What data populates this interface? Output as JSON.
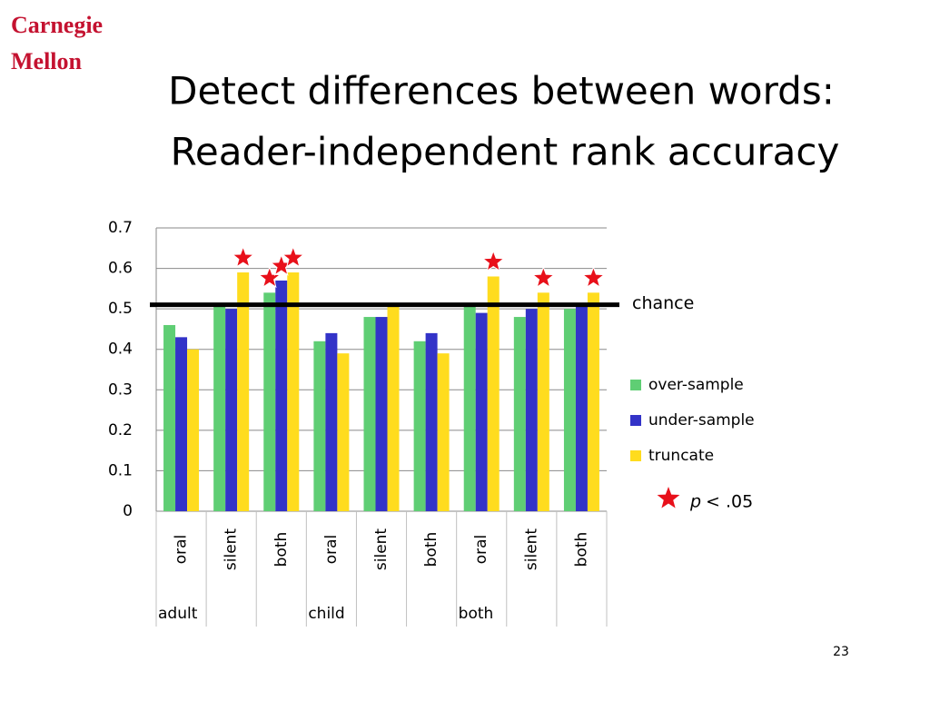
{
  "logo": [
    "Carnegie",
    "Mellon"
  ],
  "page_number": "23",
  "chart_data": {
    "type": "bar",
    "title": [
      "Detect differences between words:",
      "Reader-independent rank accuracy"
    ],
    "categories": [
      "oral",
      "silent",
      "both",
      "oral",
      "silent",
      "both",
      "oral",
      "silent",
      "both"
    ],
    "groups": [
      {
        "label": "adult",
        "start": 0
      },
      {
        "label": "child",
        "start": 3
      },
      {
        "label": "both",
        "start": 6
      }
    ],
    "series": [
      {
        "name": "over-sample",
        "color": "#5fce74",
        "values": [
          0.46,
          0.51,
          0.54,
          0.42,
          0.48,
          0.42,
          0.51,
          0.48,
          0.5
        ],
        "significant": [
          false,
          false,
          true,
          false,
          false,
          false,
          false,
          false,
          false
        ]
      },
      {
        "name": "under-sample",
        "color": "#3333c8",
        "values": [
          0.43,
          0.5,
          0.57,
          0.44,
          0.48,
          0.44,
          0.49,
          0.5,
          0.51
        ],
        "significant": [
          false,
          false,
          true,
          false,
          false,
          false,
          false,
          false,
          false
        ]
      },
      {
        "name": "truncate",
        "color": "#ffdc1e",
        "values": [
          0.4,
          0.59,
          0.59,
          0.39,
          0.51,
          0.39,
          0.58,
          0.54,
          0.54
        ],
        "significant": [
          false,
          true,
          true,
          false,
          false,
          false,
          true,
          true,
          true
        ]
      }
    ],
    "reference_line": {
      "value": 0.51,
      "label": "chance"
    },
    "significance_note": [
      "p",
      "< .05"
    ],
    "star_color": "#e8101a",
    "ylim": [
      0,
      0.7
    ],
    "yticks": [
      0,
      0.1,
      0.2,
      0.3,
      0.4,
      0.5,
      0.6,
      0.7
    ],
    "grid": true
  }
}
